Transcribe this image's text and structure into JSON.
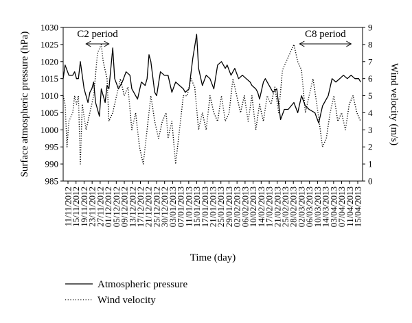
{
  "chart_data": {
    "type": "line",
    "xlabel": "Time (day)",
    "ylabel_left": "Surface atmospheric pressure (hPa)",
    "ylabel_right": "Wind velocity (m/s)",
    "ylim_left": [
      985,
      1030
    ],
    "ylim_right": [
      0,
      9
    ],
    "yticks_left": [
      985,
      990,
      995,
      1000,
      1005,
      1010,
      1015,
      1020,
      1025,
      1030
    ],
    "yticks_right": [
      0,
      1,
      2,
      3,
      4,
      5,
      6,
      7,
      8,
      9
    ],
    "x_start": "2012-11-11",
    "x_end": "2013-04-17",
    "x_tick_labels": [
      "11/11/2012",
      "15/11/2012",
      "19/11/2012",
      "23/11/2012",
      "27/11/2012",
      "01/12/2012",
      "05/12/2012",
      "09/12/2012",
      "13/12/2012",
      "17/12/2012",
      "21/12/2012",
      "25/12/2012",
      "30/12/2012",
      "03/01/2013",
      "07/01/2013",
      "11/01/2013",
      "15/01/2013",
      "17/01/2013",
      "21/01/2013",
      "25/01/2013",
      "29/01/2013",
      "02/02/2013",
      "06/02/2013",
      "10/02/2013",
      "14/02/2013",
      "17/02/2013",
      "21/02/2013",
      "25/02/2013",
      "28/02/2013",
      "02/03/2013",
      "06/03/2013",
      "10/03/2013",
      "14/03/2013",
      "03/04/2013",
      "07/04/2013",
      "11/04/2013",
      "15/04/2013"
    ],
    "annotations": [
      {
        "text": "C2 period",
        "from": "2012-11-23",
        "to": "2012-12-05"
      },
      {
        "text": "C8 period",
        "from": "2013-03-15",
        "to": "2013-04-11"
      }
    ],
    "series": [
      {
        "name": "Atmospheric pressure",
        "axis": "left",
        "style": "solid",
        "color": "#000000",
        "points": [
          [
            "2012-11-11",
            1015
          ],
          [
            "2012-11-12",
            1019
          ],
          [
            "2012-11-14",
            1016
          ],
          [
            "2012-11-16",
            1016
          ],
          [
            "2012-11-17",
            1017
          ],
          [
            "2012-11-18",
            1015
          ],
          [
            "2012-11-19",
            1015
          ],
          [
            "2012-11-20",
            1020
          ],
          [
            "2012-11-22",
            1012
          ],
          [
            "2012-11-24",
            1008
          ],
          [
            "2012-11-25",
            1011
          ],
          [
            "2012-11-26",
            1012
          ],
          [
            "2012-11-27",
            1014
          ],
          [
            "2012-11-28",
            1008
          ],
          [
            "2012-11-30",
            1004
          ],
          [
            "2012-12-01",
            1012
          ],
          [
            "2012-12-03",
            1008
          ],
          [
            "2012-12-04",
            1013
          ],
          [
            "2012-12-05",
            1012
          ],
          [
            "2012-12-07",
            1024
          ],
          [
            "2012-12-08",
            1015
          ],
          [
            "2012-12-10",
            1012
          ],
          [
            "2012-12-12",
            1014
          ],
          [
            "2012-12-14",
            1017
          ],
          [
            "2012-12-16",
            1016
          ],
          [
            "2012-12-17",
            1012
          ],
          [
            "2012-12-18",
            1011
          ],
          [
            "2012-12-20",
            1009
          ],
          [
            "2012-12-22",
            1014
          ],
          [
            "2012-12-24",
            1013
          ],
          [
            "2012-12-25",
            1015
          ],
          [
            "2012-12-26",
            1022
          ],
          [
            "2012-12-27",
            1020
          ],
          [
            "2012-12-29",
            1011
          ],
          [
            "2012-12-30",
            1010
          ],
          [
            "2013-01-01",
            1017
          ],
          [
            "2013-01-03",
            1016
          ],
          [
            "2013-01-05",
            1016
          ],
          [
            "2013-01-07",
            1011
          ],
          [
            "2013-01-09",
            1014
          ],
          [
            "2013-01-11",
            1013
          ],
          [
            "2013-01-13",
            1012
          ],
          [
            "2013-01-14",
            1011
          ],
          [
            "2013-01-16",
            1012
          ],
          [
            "2013-01-18",
            1021
          ],
          [
            "2013-01-20",
            1028
          ],
          [
            "2013-01-21",
            1018
          ],
          [
            "2013-01-23",
            1013
          ],
          [
            "2013-01-25",
            1016
          ],
          [
            "2013-01-27",
            1015
          ],
          [
            "2013-01-29",
            1012
          ],
          [
            "2013-01-31",
            1019
          ],
          [
            "2013-02-02",
            1020
          ],
          [
            "2013-02-04",
            1018
          ],
          [
            "2013-02-05",
            1019
          ],
          [
            "2013-02-07",
            1016
          ],
          [
            "2013-02-09",
            1018
          ],
          [
            "2013-02-11",
            1015
          ],
          [
            "2013-02-13",
            1016
          ],
          [
            "2013-02-15",
            1015
          ],
          [
            "2013-02-17",
            1014
          ],
          [
            "2013-02-18",
            1013
          ],
          [
            "2013-02-20",
            1012
          ],
          [
            "2013-02-21",
            1011
          ],
          [
            "2013-02-22",
            1009
          ],
          [
            "2013-02-24",
            1014
          ],
          [
            "2013-02-25",
            1015
          ],
          [
            "2013-03-01",
            1011
          ],
          [
            "2013-03-03",
            1012
          ],
          [
            "2013-03-05",
            1003
          ],
          [
            "2013-03-07",
            1006
          ],
          [
            "2013-03-09",
            1006
          ],
          [
            "2013-03-12",
            1008
          ],
          [
            "2013-03-14",
            1005
          ],
          [
            "2013-03-16",
            1010
          ],
          [
            "2013-03-18",
            1007
          ],
          [
            "2013-03-20",
            1006
          ],
          [
            "2013-03-23",
            1005
          ],
          [
            "2013-03-25",
            1002
          ],
          [
            "2013-03-27",
            1007
          ],
          [
            "2013-03-30",
            1010
          ],
          [
            "2013-04-01",
            1015
          ],
          [
            "2013-04-03",
            1014
          ],
          [
            "2013-04-05",
            1015
          ],
          [
            "2013-04-07",
            1016
          ],
          [
            "2013-04-09",
            1015
          ],
          [
            "2013-04-11",
            1016
          ],
          [
            "2013-04-13",
            1015
          ],
          [
            "2013-04-15",
            1015
          ],
          [
            "2013-04-16",
            1014
          ]
        ]
      },
      {
        "name": "Wind velocity",
        "axis": "right",
        "style": "dotted",
        "color": "#000000",
        "points": [
          [
            "2012-11-11",
            5.0
          ],
          [
            "2012-11-12",
            4.5
          ],
          [
            "2012-11-13",
            2.0
          ],
          [
            "2012-11-14",
            3.5
          ],
          [
            "2012-11-16",
            4.0
          ],
          [
            "2012-11-17",
            5.0
          ],
          [
            "2012-11-18",
            4.5
          ],
          [
            "2012-11-19",
            5.0
          ],
          [
            "2012-11-20",
            1.0
          ],
          [
            "2012-11-21",
            4.5
          ],
          [
            "2012-11-23",
            3.0
          ],
          [
            "2012-11-25",
            4.0
          ],
          [
            "2012-11-27",
            5.0
          ],
          [
            "2012-11-29",
            7.5
          ],
          [
            "2012-12-01",
            8.0
          ],
          [
            "2012-12-02",
            7.0
          ],
          [
            "2012-12-04",
            6.0
          ],
          [
            "2012-12-05",
            3.5
          ],
          [
            "2012-12-07",
            4.0
          ],
          [
            "2012-12-09",
            5.0
          ],
          [
            "2012-12-11",
            6.0
          ],
          [
            "2012-12-13",
            5.0
          ],
          [
            "2012-12-15",
            5.5
          ],
          [
            "2012-12-17",
            3.0
          ],
          [
            "2012-12-19",
            4.0
          ],
          [
            "2012-12-21",
            2.0
          ],
          [
            "2012-12-23",
            1.0
          ],
          [
            "2012-12-25",
            3.0
          ],
          [
            "2012-12-27",
            5.0
          ],
          [
            "2012-12-29",
            3.5
          ],
          [
            "2012-12-31",
            2.5
          ],
          [
            "2013-01-02",
            3.5
          ],
          [
            "2013-01-04",
            4.0
          ],
          [
            "2013-01-05",
            2.5
          ],
          [
            "2013-01-07",
            3.5
          ],
          [
            "2013-01-09",
            1.0
          ],
          [
            "2013-01-11",
            3.0
          ],
          [
            "2013-01-13",
            5.0
          ],
          [
            "2013-01-15",
            5.0
          ],
          [
            "2013-01-17",
            6.0
          ],
          [
            "2013-01-19",
            5.5
          ],
          [
            "2013-01-21",
            3.0
          ],
          [
            "2013-01-23",
            4.0
          ],
          [
            "2013-01-25",
            3.0
          ],
          [
            "2013-01-27",
            5.0
          ],
          [
            "2013-01-29",
            4.0
          ],
          [
            "2013-01-31",
            3.5
          ],
          [
            "2013-02-02",
            5.0
          ],
          [
            "2013-02-04",
            3.5
          ],
          [
            "2013-02-06",
            4.0
          ],
          [
            "2013-02-08",
            6.0
          ],
          [
            "2013-02-10",
            5.0
          ],
          [
            "2013-02-12",
            4.0
          ],
          [
            "2013-02-14",
            5.0
          ],
          [
            "2013-02-16",
            3.5
          ],
          [
            "2013-02-18",
            5.0
          ],
          [
            "2013-02-20",
            3.0
          ],
          [
            "2013-02-22",
            4.5
          ],
          [
            "2013-02-24",
            3.5
          ],
          [
            "2013-02-26",
            5.0
          ],
          [
            "2013-02-28",
            4.5
          ],
          [
            "2013-03-02",
            5.5
          ],
          [
            "2013-03-04",
            4.0
          ],
          [
            "2013-03-06",
            6.5
          ],
          [
            "2013-03-08",
            7.0
          ],
          [
            "2013-03-10",
            7.5
          ],
          [
            "2013-03-12",
            8.0
          ],
          [
            "2013-03-14",
            7.0
          ],
          [
            "2013-03-16",
            6.5
          ],
          [
            "2013-03-18",
            4.0
          ],
          [
            "2013-03-20",
            5.0
          ],
          [
            "2013-03-22",
            6.0
          ],
          [
            "2013-03-24",
            4.5
          ],
          [
            "2013-03-27",
            2.0
          ],
          [
            "2013-03-29",
            2.5
          ],
          [
            "2013-03-31",
            4.0
          ],
          [
            "2013-04-02",
            5.0
          ],
          [
            "2013-04-04",
            3.5
          ],
          [
            "2013-04-06",
            4.0
          ],
          [
            "2013-04-08",
            3.0
          ],
          [
            "2013-04-10",
            4.5
          ],
          [
            "2013-04-12",
            5.0
          ],
          [
            "2013-04-14",
            4.0
          ],
          [
            "2013-04-16",
            3.5
          ]
        ]
      }
    ],
    "legend_placement": "bottom-left",
    "grid": false
  }
}
